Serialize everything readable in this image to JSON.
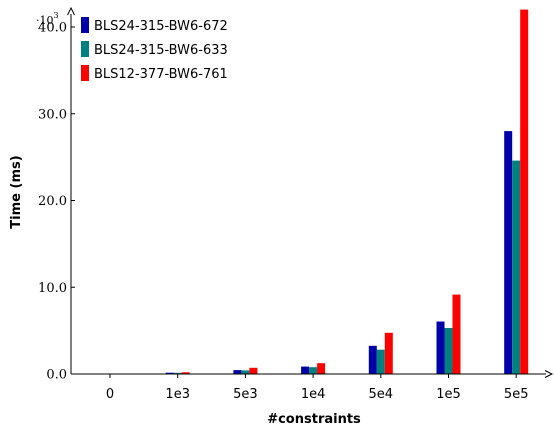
{
  "chart_data": {
    "type": "bar",
    "categories": [
      "0",
      "1e3",
      "5e3",
      "1e4",
      "5e4",
      "1e5",
      "5e5"
    ],
    "series": [
      {
        "name": "BLS24-315-BW6-672",
        "color": "#0000a8",
        "values": [
          0.05,
          0.15,
          0.45,
          0.85,
          3.25,
          6.05,
          28.0
        ]
      },
      {
        "name": "BLS24-315-BW6-633",
        "color": "#008080",
        "values": [
          0.05,
          0.14,
          0.42,
          0.78,
          2.8,
          5.3,
          24.6
        ]
      },
      {
        "name": "BLS12-377-BW6-761",
        "color": "#ff0000",
        "values": [
          0.06,
          0.2,
          0.72,
          1.25,
          4.75,
          9.15,
          42.0
        ]
      }
    ],
    "xlabel": "#constraints",
    "ylabel": "Time (ms)",
    "y_scale_exponent": "10³",
    "y_scale_prefix": "·10",
    "y_scale_power": "3",
    "yticks": [
      0,
      10,
      20,
      30,
      40
    ],
    "ytick_labels": [
      "0.0",
      "10.0",
      "20.0",
      "30.0",
      "40.0"
    ],
    "ylim": [
      0,
      42
    ],
    "legend_position": "top-left",
    "grid": false
  }
}
